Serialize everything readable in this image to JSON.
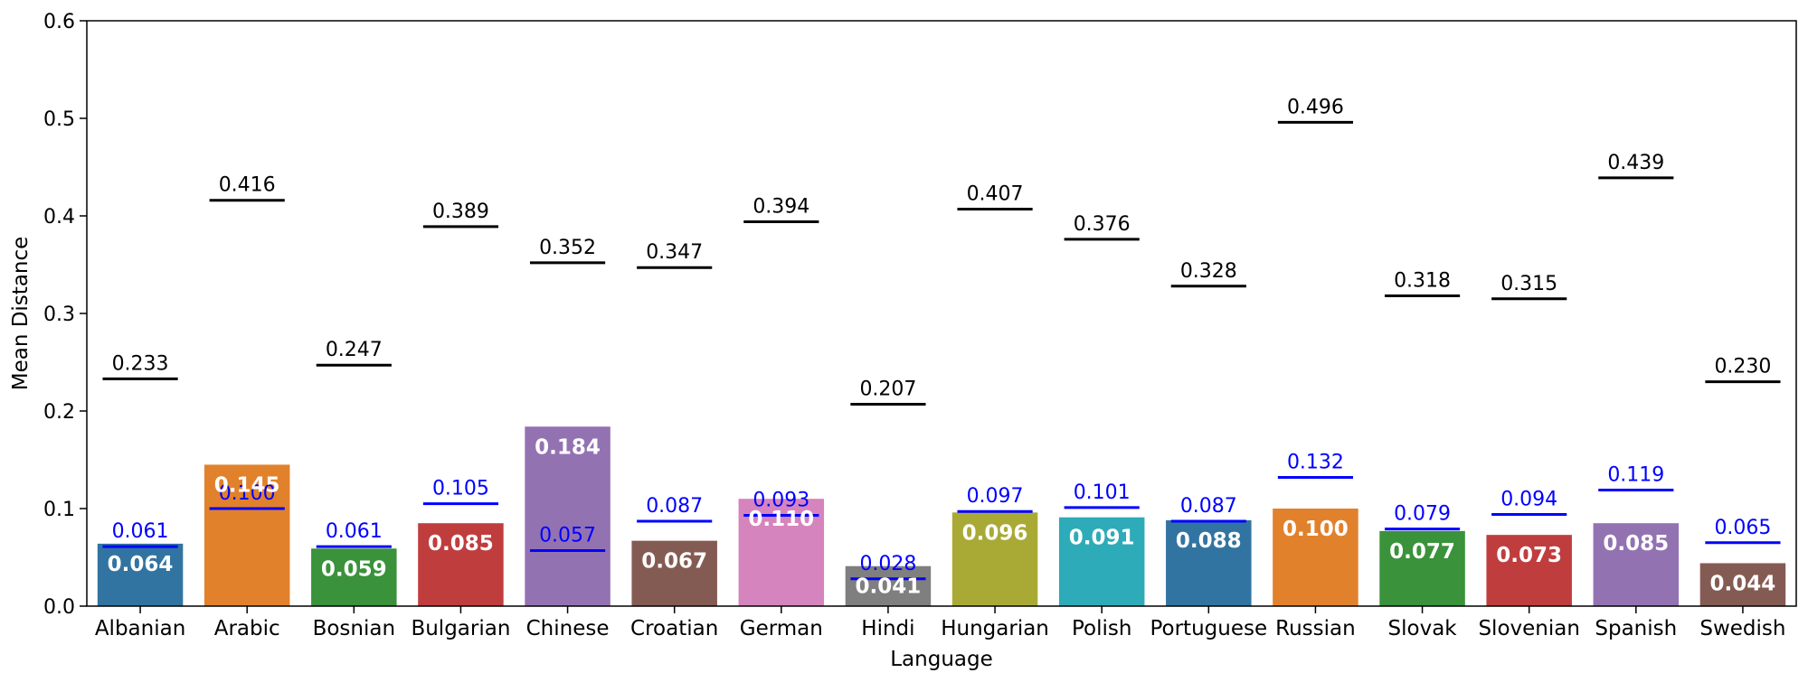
{
  "chart_data": {
    "type": "bar",
    "title": "",
    "xlabel": "Language",
    "ylabel": "Mean Distance",
    "ylim": [
      0,
      0.6
    ],
    "yticks": [
      "0.0",
      "0.1",
      "0.2",
      "0.3",
      "0.4",
      "0.5",
      "0.6"
    ],
    "grid": false,
    "categories": [
      "Albanian",
      "Arabic",
      "Bosnian",
      "Bulgarian",
      "Chinese",
      "Croatian",
      "German",
      "Hindi",
      "Hungarian",
      "Polish",
      "Portuguese",
      "Russian",
      "Slovak",
      "Slovenian",
      "Spanish",
      "Swedish"
    ],
    "values": [
      0.064,
      0.145,
      0.059,
      0.085,
      0.184,
      0.067,
      0.11,
      0.041,
      0.096,
      0.091,
      0.088,
      0.1,
      0.077,
      0.073,
      0.085,
      0.044
    ],
    "value_labels": [
      "0.064",
      "0.145",
      "0.059",
      "0.085",
      "0.184",
      "0.067",
      "0.110",
      "0.041",
      "0.096",
      "0.091",
      "0.088",
      "0.100",
      "0.077",
      "0.073",
      "0.085",
      "0.044"
    ],
    "bar_colors": [
      "#3274a1",
      "#e1812c",
      "#3a923a",
      "#c03d3e",
      "#9372b2",
      "#845b53",
      "#d684bd",
      "#7f7f7f",
      "#a9aa35",
      "#2eabb8",
      "#3274a1",
      "#e1812c",
      "#3a923a",
      "#c03d3e",
      "#9372b2",
      "#845b53"
    ],
    "blue_markers": {
      "color": "#0000ff",
      "values": [
        0.061,
        0.1,
        0.061,
        0.105,
        0.057,
        0.087,
        0.093,
        0.028,
        0.097,
        0.101,
        0.087,
        0.132,
        0.079,
        0.094,
        0.119,
        0.065
      ],
      "labels": [
        "0.061",
        "0.100",
        "0.061",
        "0.105",
        "0.057",
        "0.087",
        "0.093",
        "0.028",
        "0.097",
        "0.101",
        "0.087",
        "0.132",
        "0.079",
        "0.094",
        "0.119",
        "0.065"
      ]
    },
    "black_markers": {
      "color": "#000000",
      "values": [
        0.233,
        0.416,
        0.247,
        0.389,
        0.352,
        0.347,
        0.394,
        0.207,
        0.407,
        0.376,
        0.328,
        0.496,
        0.318,
        0.315,
        0.439,
        0.23
      ],
      "labels": [
        "0.233",
        "0.416",
        "0.247",
        "0.389",
        "0.352",
        "0.347",
        "0.394",
        "0.207",
        "0.407",
        "0.376",
        "0.328",
        "0.496",
        "0.318",
        "0.315",
        "0.439",
        "0.230"
      ]
    }
  }
}
